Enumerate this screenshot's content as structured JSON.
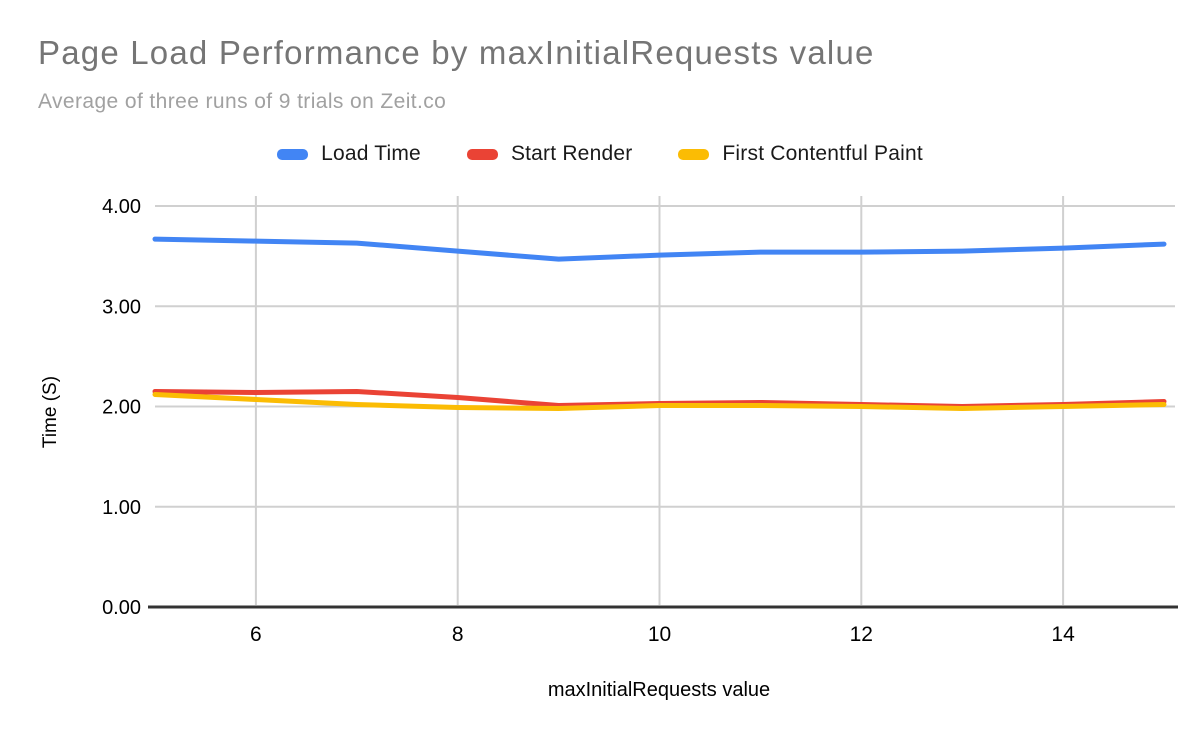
{
  "header": {
    "title": "Page Load Performance by maxInitialRequests value",
    "subtitle": "Average of three runs of 9 trials on Zeit.co"
  },
  "chart_data": {
    "type": "line",
    "title": "Page Load Performance by maxInitialRequests value",
    "subtitle": "Average of three runs of 9 trials on Zeit.co",
    "xlabel": "maxInitialRequests value",
    "ylabel": "Time (S)",
    "x": [
      5,
      6,
      7,
      8,
      9,
      10,
      11,
      12,
      13,
      14,
      15
    ],
    "series": [
      {
        "name": "Load Time",
        "color": "#4285F4",
        "values": [
          3.67,
          3.65,
          3.63,
          3.55,
          3.47,
          3.51,
          3.54,
          3.54,
          3.55,
          3.58,
          3.62
        ]
      },
      {
        "name": "Start Render",
        "color": "#EA4335",
        "values": [
          2.15,
          2.14,
          2.15,
          2.09,
          2.01,
          2.03,
          2.04,
          2.02,
          2.0,
          2.02,
          2.05
        ]
      },
      {
        "name": "First Contentful Paint",
        "color": "#FBBC04",
        "values": [
          2.12,
          2.07,
          2.02,
          1.99,
          1.98,
          2.01,
          2.01,
          2.0,
          1.98,
          2.0,
          2.02
        ]
      }
    ],
    "xlim": [
      5,
      15
    ],
    "ylim": [
      0,
      4
    ],
    "xticks": [
      6,
      8,
      10,
      12,
      14
    ],
    "yticks": [
      "0.00",
      "1.00",
      "2.00",
      "3.00",
      "4.00"
    ],
    "grid": true,
    "legend_position": "top",
    "colors": {
      "grid": "#d0d0d0",
      "axis": "#333333",
      "tick_text": "#000000",
      "title": "#757575",
      "subtitle": "#a1a1a1"
    }
  }
}
